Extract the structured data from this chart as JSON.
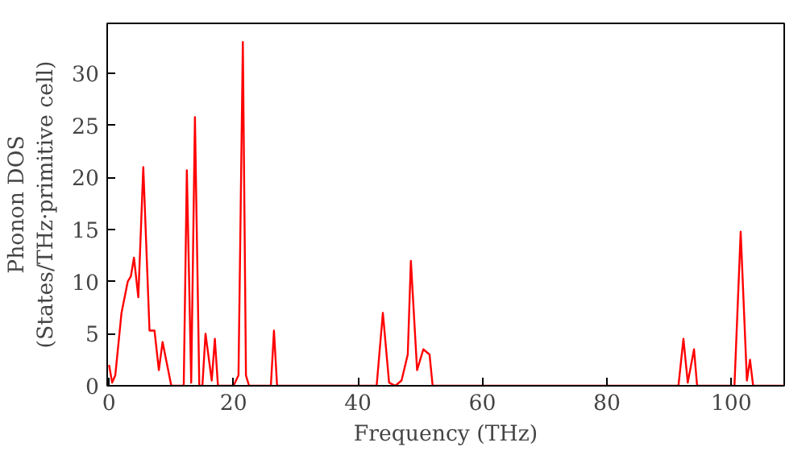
{
  "chart_data": {
    "type": "line",
    "xlabel": "Frequency (THz)",
    "ylabel": "Phonon DOS\n(States/THz·primitive cell)",
    "xlim": [
      -0.3,
      108.5
    ],
    "ylim": [
      0,
      34.8
    ],
    "xticks": [
      0,
      20,
      40,
      60,
      80,
      100
    ],
    "yticks": [
      0,
      5,
      10,
      15,
      20,
      25,
      30
    ],
    "series": [
      {
        "color": "#ff0000",
        "x": [
          0,
          0.5,
          1,
          2,
          3,
          3.5,
          4,
          4.7,
          5.5,
          6.5,
          7.3,
          8,
          8.6,
          9.5,
          10,
          12,
          12.5,
          13.2,
          13.8,
          14.5,
          15,
          15.5,
          16.5,
          17,
          17.5,
          20,
          20.8,
          21.5,
          22,
          22.5,
          26,
          26.5,
          27,
          43,
          44,
          45,
          46,
          47,
          48,
          48.5,
          49.5,
          50.5,
          51.5,
          52,
          91.5,
          92.3,
          93,
          94,
          94.5,
          100.5,
          101.5,
          102.5,
          103,
          103.5,
          108.5
        ],
        "values": [
          2,
          0.3,
          1,
          7,
          10,
          10.5,
          12.3,
          8.5,
          21,
          5.3,
          5.3,
          1.5,
          4.2,
          1.5,
          0,
          0,
          20.7,
          0.3,
          25.8,
          0,
          0,
          5,
          0.5,
          4.5,
          0,
          0,
          1,
          33,
          1,
          0,
          0,
          5.3,
          0,
          0,
          7,
          0.3,
          0,
          0.5,
          3,
          12,
          1.5,
          3.5,
          3,
          0,
          0,
          4.5,
          0.3,
          3.5,
          0,
          0,
          14.8,
          0.5,
          2.5,
          0,
          0
        ]
      }
    ]
  }
}
